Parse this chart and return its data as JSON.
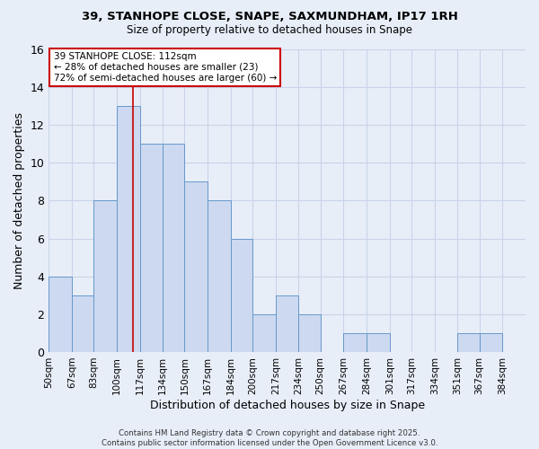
{
  "title1": "39, STANHOPE CLOSE, SNAPE, SAXMUNDHAM, IP17 1RH",
  "title2": "Size of property relative to detached houses in Snape",
  "xlabel": "Distribution of detached houses by size in Snape",
  "ylabel": "Number of detached properties",
  "bin_labels": [
    "50sqm",
    "67sqm",
    "83sqm",
    "100sqm",
    "117sqm",
    "134sqm",
    "150sqm",
    "167sqm",
    "184sqm",
    "200sqm",
    "217sqm",
    "234sqm",
    "250sqm",
    "267sqm",
    "284sqm",
    "301sqm",
    "317sqm",
    "334sqm",
    "351sqm",
    "367sqm",
    "384sqm"
  ],
  "bin_edges": [
    50,
    67,
    83,
    100,
    117,
    134,
    150,
    167,
    184,
    200,
    217,
    234,
    250,
    267,
    284,
    301,
    317,
    334,
    351,
    367,
    384,
    401
  ],
  "counts": [
    4,
    3,
    8,
    13,
    11,
    11,
    9,
    8,
    6,
    2,
    3,
    2,
    0,
    1,
    1,
    0,
    0,
    0,
    1,
    1,
    0
  ],
  "bar_color": "#ccd9f0",
  "bar_edge_color": "#6699cc",
  "grid_color": "#c8d4e8",
  "bg_color": "#e8eef8",
  "vline_x": 112,
  "vline_color": "#cc0000",
  "annotation_title": "39 STANHOPE CLOSE: 112sqm",
  "annotation_line1": "← 28% of detached houses are smaller (23)",
  "annotation_line2": "72% of semi-detached houses are larger (60) →",
  "annotation_box_color": "#ffffff",
  "annotation_box_edge": "#cc0000",
  "footer1": "Contains HM Land Registry data © Crown copyright and database right 2025.",
  "footer2": "Contains public sector information licensed under the Open Government Licence v3.0.",
  "ylim": [
    0,
    16
  ],
  "yticks": [
    0,
    2,
    4,
    6,
    8,
    10,
    12,
    14,
    16
  ]
}
